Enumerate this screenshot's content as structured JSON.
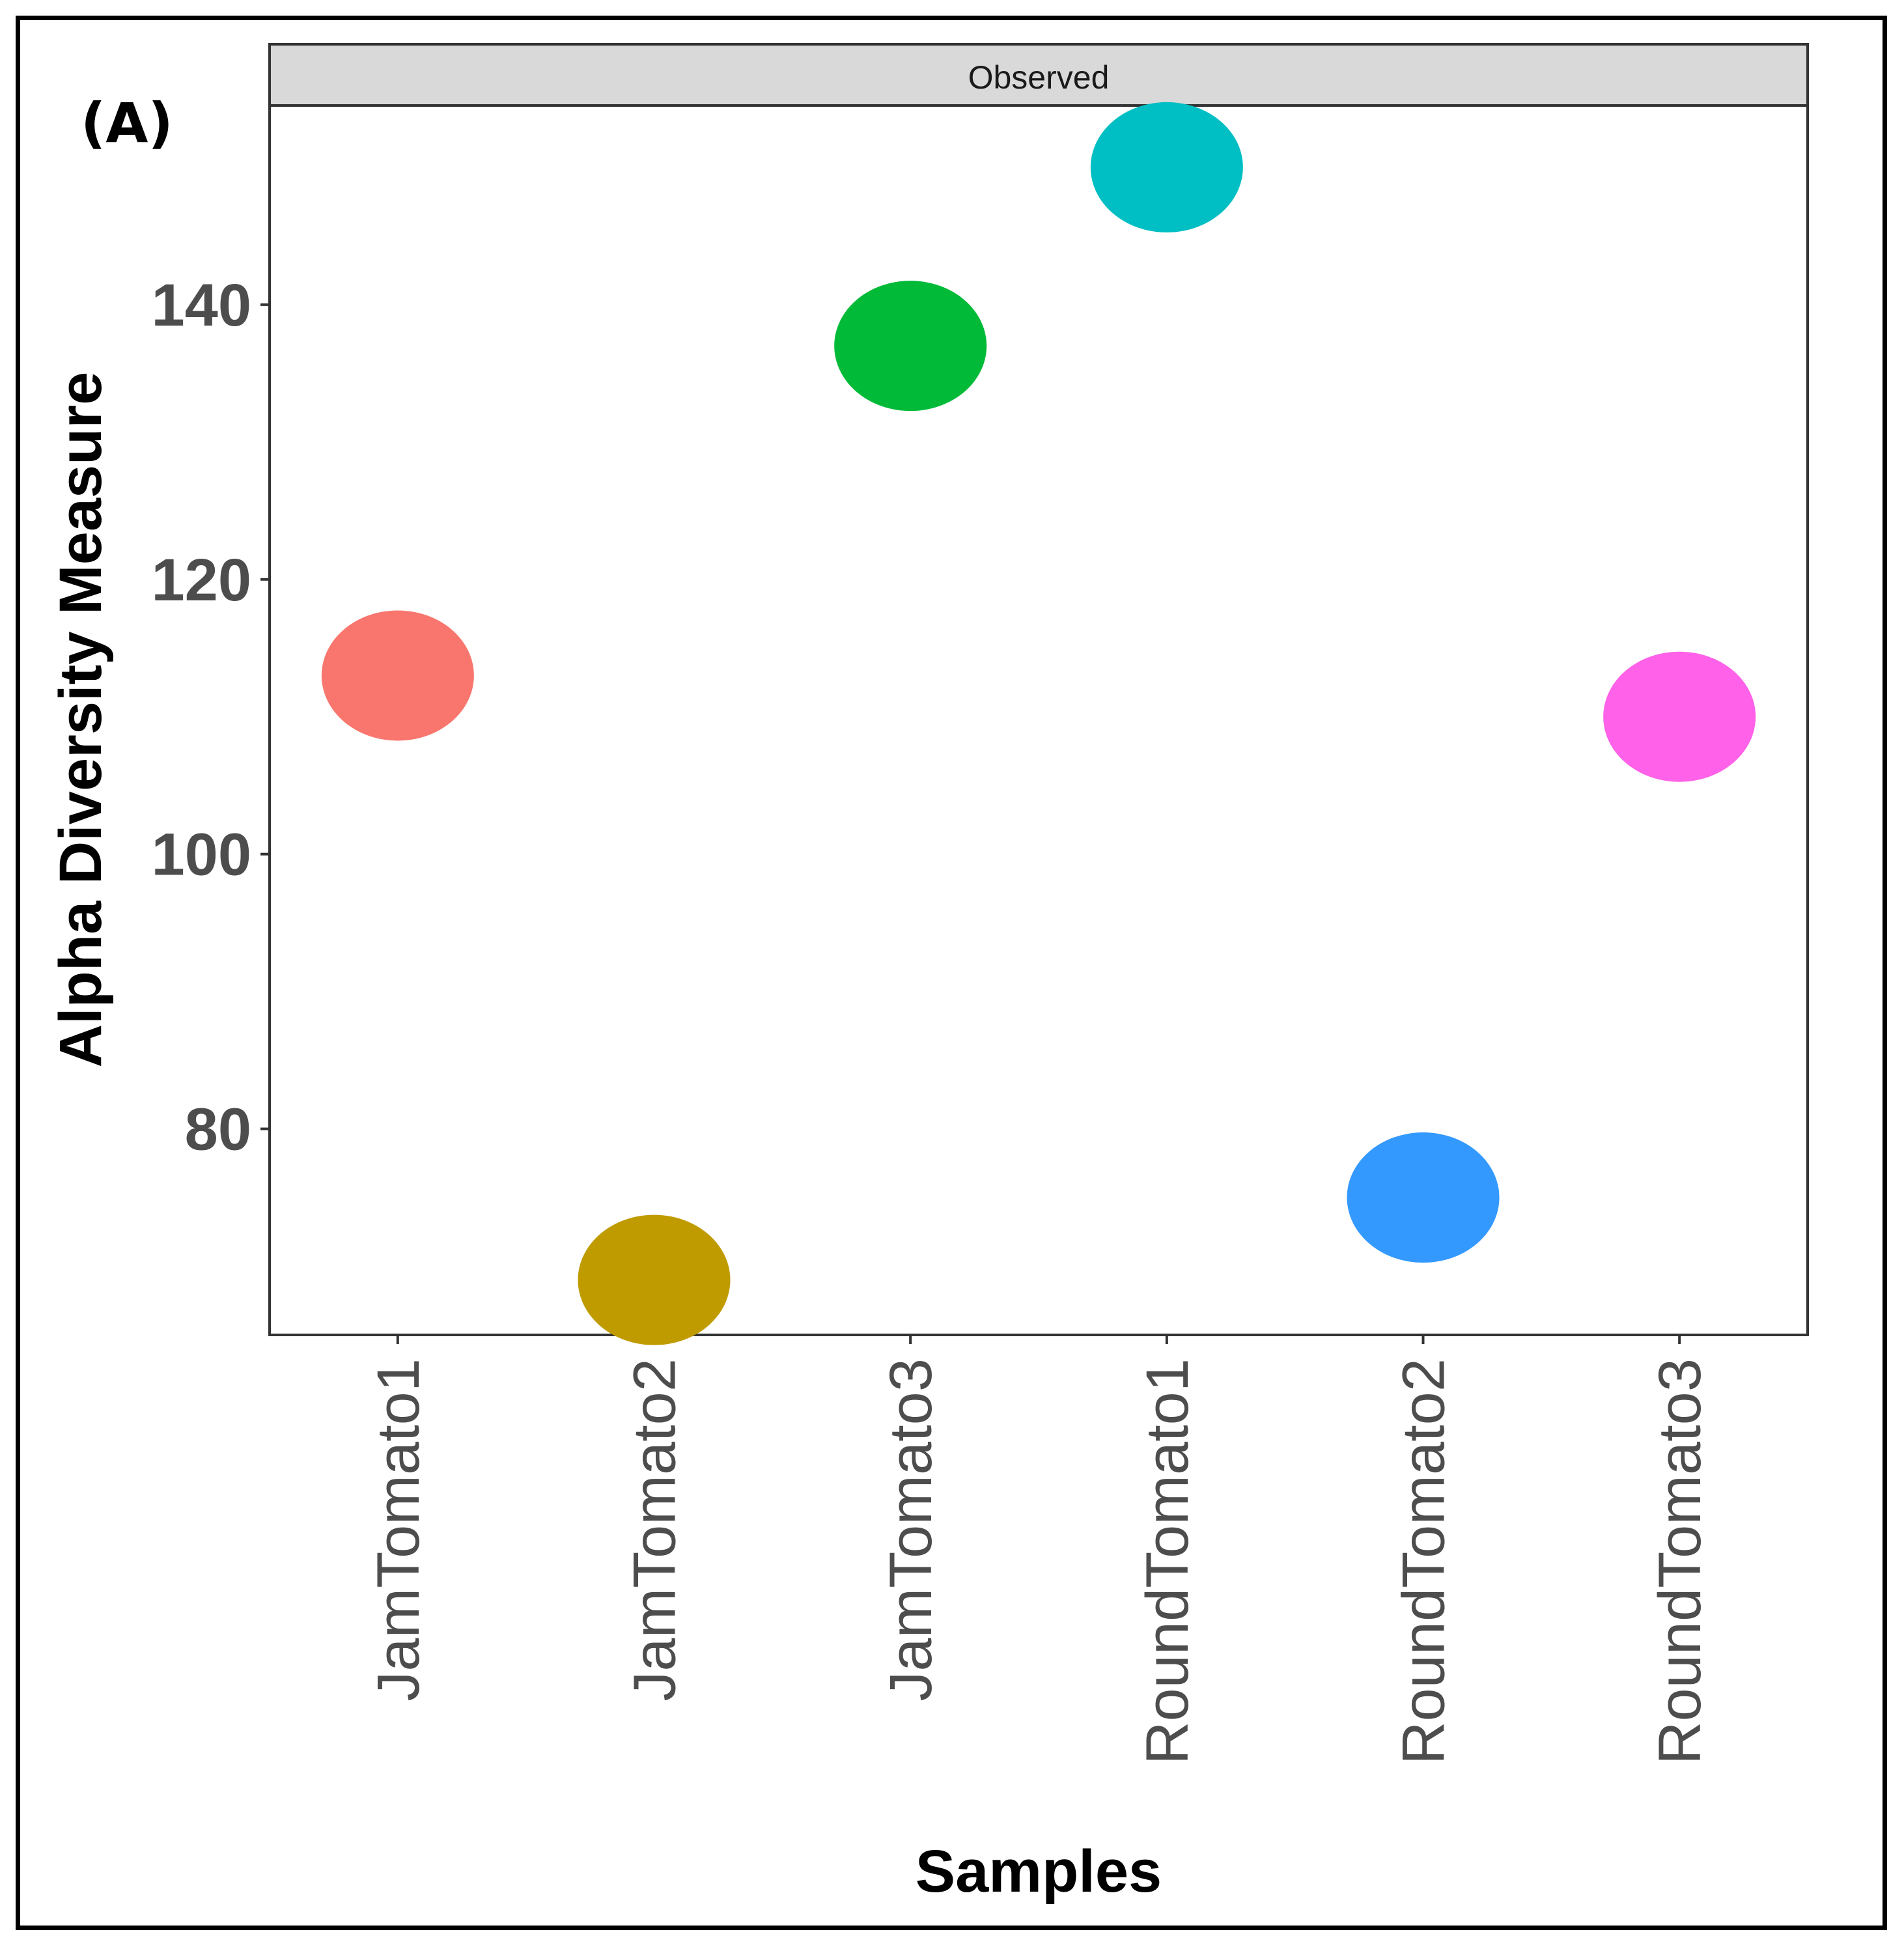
{
  "panel_label": "(A)",
  "colors": {
    "panel_border": "#333333",
    "strip_fill": "#d9d9d9",
    "tick_text": "#4d4d4d"
  },
  "chart_data": {
    "type": "scatter",
    "facet": "Observed",
    "categories": [
      "JamTomato1",
      "JamTomato2",
      "JamTomato3",
      "RoundTomato1",
      "RoundTomato2",
      "RoundTomato3"
    ],
    "values": [
      113,
      69,
      137,
      150,
      75,
      110
    ],
    "colors": [
      "#F8766D",
      "#C09B00",
      "#00BA38",
      "#00BFC4",
      "#3399FF",
      "#FF61E8"
    ],
    "xlabel": "Samples",
    "ylabel": "Alpha Diversity Measure",
    "yticks": [
      80,
      100,
      120,
      140
    ],
    "ylim": [
      65,
      154.5
    ],
    "grid": false
  }
}
